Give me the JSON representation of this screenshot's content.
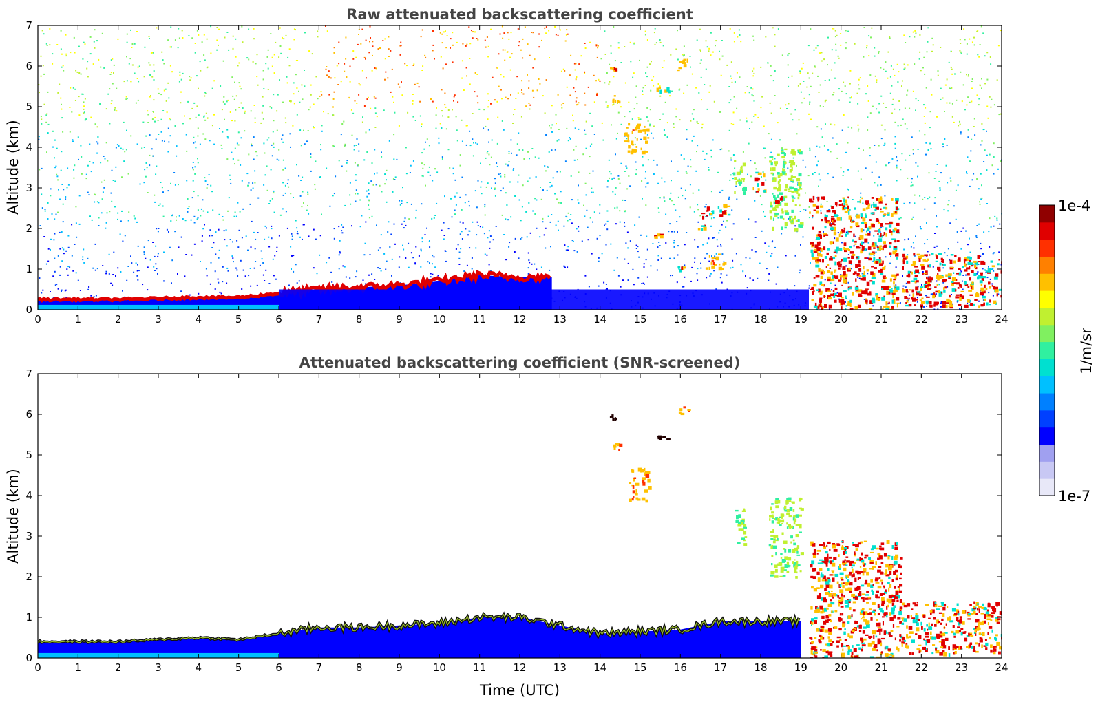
{
  "chart_data": [
    {
      "type": "heatmap",
      "title": "Raw attenuated backscattering coefficient",
      "xlabel": "",
      "ylabel": "Altitude (km)",
      "xlim": [
        0,
        24
      ],
      "ylim": [
        0,
        7
      ],
      "xticks": [
        "0",
        "1",
        "2",
        "3",
        "4",
        "5",
        "6",
        "7",
        "8",
        "9",
        "10",
        "11",
        "12",
        "13",
        "14",
        "15",
        "16",
        "17",
        "18",
        "19",
        "20",
        "21",
        "22",
        "23",
        "24"
      ],
      "yticks": [
        "0",
        "1",
        "2",
        "3",
        "4",
        "5",
        "6",
        "7"
      ],
      "grid": false,
      "features": [
        {
          "kind": "background_noise",
          "note": "speckled signal filling the whole domain, blue near surface, green/yellow aloft, orange-red above 5 km between 7 and 14 UTC"
        },
        {
          "kind": "boundary_layer_top",
          "points": [
            [
              0,
              0.25
            ],
            [
              2,
              0.25
            ],
            [
              4,
              0.3
            ],
            [
              5,
              0.3
            ],
            [
              6,
              0.4
            ],
            [
              7,
              0.5
            ],
            [
              8,
              0.55
            ],
            [
              9,
              0.6
            ],
            [
              10,
              0.7
            ],
            [
              11,
              0.85
            ],
            [
              12,
              0.8
            ],
            [
              12.8,
              0.8
            ]
          ],
          "level": "high"
        },
        {
          "kind": "cloud",
          "x": [
            14.2,
            14.4
          ],
          "y": [
            5.9,
            6.0
          ],
          "level": "high"
        },
        {
          "kind": "cloud",
          "x": [
            14.3,
            14.5
          ],
          "y": [
            5.1,
            5.3
          ],
          "level": "medium-high"
        },
        {
          "kind": "cloud",
          "x": [
            14.6,
            15.2
          ],
          "y": [
            3.9,
            4.6
          ],
          "level": "medium-high"
        },
        {
          "kind": "cloud",
          "x": [
            15.4,
            15.7
          ],
          "y": [
            5.4,
            5.5
          ],
          "level": "high"
        },
        {
          "kind": "cloud",
          "x": [
            15.9,
            16.2
          ],
          "y": [
            5.9,
            6.2
          ],
          "level": "medium-high"
        },
        {
          "kind": "cloud",
          "x": [
            15.3,
            15.5
          ],
          "y": [
            1.8,
            1.9
          ],
          "level": "high"
        },
        {
          "kind": "cloud",
          "x": [
            16.5,
            17.2
          ],
          "y": [
            2.3,
            2.6
          ],
          "level": "high"
        },
        {
          "kind": "cloud",
          "x": [
            16.4,
            16.6
          ],
          "y": [
            2.0,
            2.1
          ],
          "level": "high"
        },
        {
          "kind": "cloud",
          "x": [
            15.9,
            16.1
          ],
          "y": [
            1.0,
            1.1
          ],
          "level": "high"
        },
        {
          "kind": "cloud",
          "x": [
            16.6,
            17.1
          ],
          "y": [
            1.0,
            1.4
          ],
          "level": "medium-high"
        },
        {
          "kind": "cloud",
          "x": [
            17.3,
            17.6
          ],
          "y": [
            2.8,
            3.7
          ],
          "level": "medium"
        },
        {
          "kind": "cloud",
          "x": [
            17.8,
            18.1
          ],
          "y": [
            2.9,
            3.4
          ],
          "level": "high"
        },
        {
          "kind": "cloud",
          "x": [
            18.2,
            19.0
          ],
          "y": [
            2.0,
            4.0
          ],
          "level": "medium"
        },
        {
          "kind": "cloud",
          "x": [
            18.3,
            18.5
          ],
          "y": [
            2.6,
            2.8
          ],
          "level": "high"
        },
        {
          "kind": "cloud",
          "x": [
            19.2,
            21.4
          ],
          "y": [
            0,
            2.8
          ],
          "level": "high"
        },
        {
          "kind": "cloud",
          "x": [
            21.5,
            24.0
          ],
          "y": [
            0.1,
            1.4
          ],
          "level": "high"
        },
        {
          "kind": "surface_blue",
          "x": [
            6,
            19.2
          ],
          "y": [
            0,
            0.5
          ],
          "level": "low"
        }
      ]
    },
    {
      "type": "heatmap",
      "title": "Attenuated backscattering coefficient (SNR-screened)",
      "xlabel": "Time (UTC)",
      "ylabel": "Altitude (km)",
      "xlim": [
        0,
        24
      ],
      "ylim": [
        0,
        7
      ],
      "xticks": [
        "0",
        "1",
        "2",
        "3",
        "4",
        "5",
        "6",
        "7",
        "8",
        "9",
        "10",
        "11",
        "12",
        "13",
        "14",
        "15",
        "16",
        "17",
        "18",
        "19",
        "20",
        "21",
        "22",
        "23",
        "24"
      ],
      "yticks": [
        "0",
        "1",
        "2",
        "3",
        "4",
        "5",
        "6",
        "7"
      ],
      "grid": false,
      "features": [
        {
          "kind": "boundary_layer",
          "points": [
            [
              0,
              0.4
            ],
            [
              2,
              0.4
            ],
            [
              4,
              0.5
            ],
            [
              5,
              0.45
            ],
            [
              6,
              0.6
            ],
            [
              7,
              0.75
            ],
            [
              8,
              0.75
            ],
            [
              9,
              0.8
            ],
            [
              10,
              0.85
            ],
            [
              11,
              1.0
            ],
            [
              12,
              1.0
            ],
            [
              13,
              0.8
            ],
            [
              14,
              0.6
            ],
            [
              16,
              0.7
            ],
            [
              17,
              0.9
            ],
            [
              19,
              0.9
            ]
          ],
          "level": "low"
        },
        {
          "kind": "cloud",
          "x": [
            14.2,
            14.4
          ],
          "y": [
            5.9,
            6.0
          ],
          "level": "very-high"
        },
        {
          "kind": "cloud",
          "x": [
            14.3,
            14.5
          ],
          "y": [
            5.1,
            5.3
          ],
          "level": "medium-high"
        },
        {
          "kind": "cloud",
          "x": [
            14.7,
            15.2
          ],
          "y": [
            3.9,
            4.7
          ],
          "level": "medium-high"
        },
        {
          "kind": "cloud",
          "x": [
            15.4,
            15.7
          ],
          "y": [
            5.4,
            5.5
          ],
          "level": "very-high"
        },
        {
          "kind": "cloud",
          "x": [
            15.9,
            16.2
          ],
          "y": [
            6.0,
            6.2
          ],
          "level": "medium-high"
        },
        {
          "kind": "cloud",
          "x": [
            17.3,
            17.6
          ],
          "y": [
            2.8,
            3.7
          ],
          "level": "medium"
        },
        {
          "kind": "cloud",
          "x": [
            18.2,
            19.0
          ],
          "y": [
            2.0,
            4.0
          ],
          "level": "medium"
        },
        {
          "kind": "cloud",
          "x": [
            19.2,
            21.5
          ],
          "y": [
            0,
            2.9
          ],
          "level": "high"
        },
        {
          "kind": "cloud",
          "x": [
            21.5,
            24.0
          ],
          "y": [
            0.1,
            1.4
          ],
          "level": "high"
        }
      ]
    }
  ],
  "colorbar": {
    "max_label": "1e-4",
    "min_label": "1e-7",
    "unit_label": "1/m/sr",
    "colors": [
      "#e8e8f8",
      "#c8c8f4",
      "#a0a0f0",
      "#0000ff",
      "#0040ff",
      "#0080ff",
      "#00c0ff",
      "#00e0d0",
      "#30f0a0",
      "#80f060",
      "#c0f030",
      "#ffff00",
      "#ffc000",
      "#ff8000",
      "#ff3000",
      "#e00000",
      "#900000"
    ]
  },
  "colors": {
    "title": "#444444",
    "axes": "#000000",
    "background": "#ffffff"
  }
}
